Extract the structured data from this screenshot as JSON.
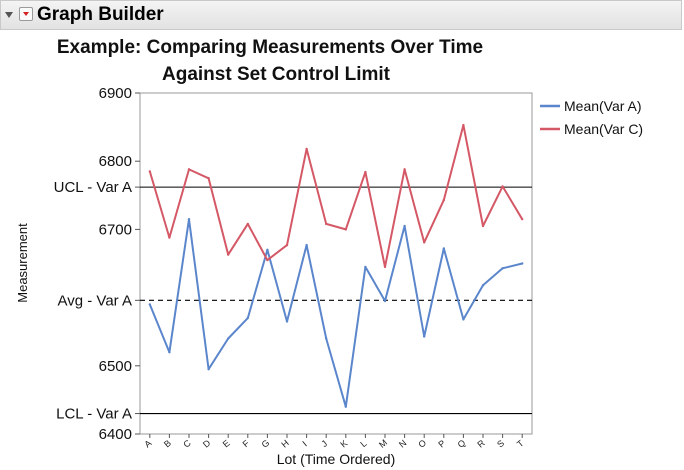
{
  "app": {
    "title": "Graph Builder"
  },
  "chart_data": {
    "type": "line",
    "title_line1": "Example: Comparing Measurements Over Time",
    "title_line2": "Against Set Control Limit",
    "xlabel": "Lot (Time Ordered)",
    "ylabel": "Measurement",
    "categories": [
      "A",
      "B",
      "C",
      "D",
      "E",
      "F",
      "G",
      "H",
      "I",
      "J",
      "K",
      "L",
      "M",
      "N",
      "O",
      "P",
      "Q",
      "R",
      "S",
      "T"
    ],
    "ylim": [
      6400,
      6900
    ],
    "yticks": [
      6400,
      6500,
      6700,
      6800,
      6900
    ],
    "series": [
      {
        "name": "Mean(Var A)",
        "color": "#5b86cc",
        "values": [
          6590,
          6520,
          6715,
          6495,
          6540,
          6570,
          6670,
          6565,
          6677,
          6540,
          6440,
          6645,
          6595,
          6705,
          6543,
          6672,
          6568,
          6618,
          6643,
          6650
        ]
      },
      {
        "name": "Mean(Var C)",
        "color": "#d45866",
        "values": [
          6785,
          6688,
          6788,
          6775,
          6663,
          6708,
          6655,
          6677,
          6818,
          6708,
          6700,
          6784,
          6645,
          6788,
          6681,
          6743,
          6853,
          6705,
          6763,
          6715
        ]
      }
    ],
    "reference_lines": [
      {
        "label": "UCL - Var A",
        "value": 6762,
        "style": "solid"
      },
      {
        "label": "Avg - Var A",
        "value": 6596,
        "style": "dashed"
      },
      {
        "label": "LCL - Var A",
        "value": 6430,
        "style": "solid"
      }
    ],
    "legend_position": "right",
    "grid": false
  }
}
